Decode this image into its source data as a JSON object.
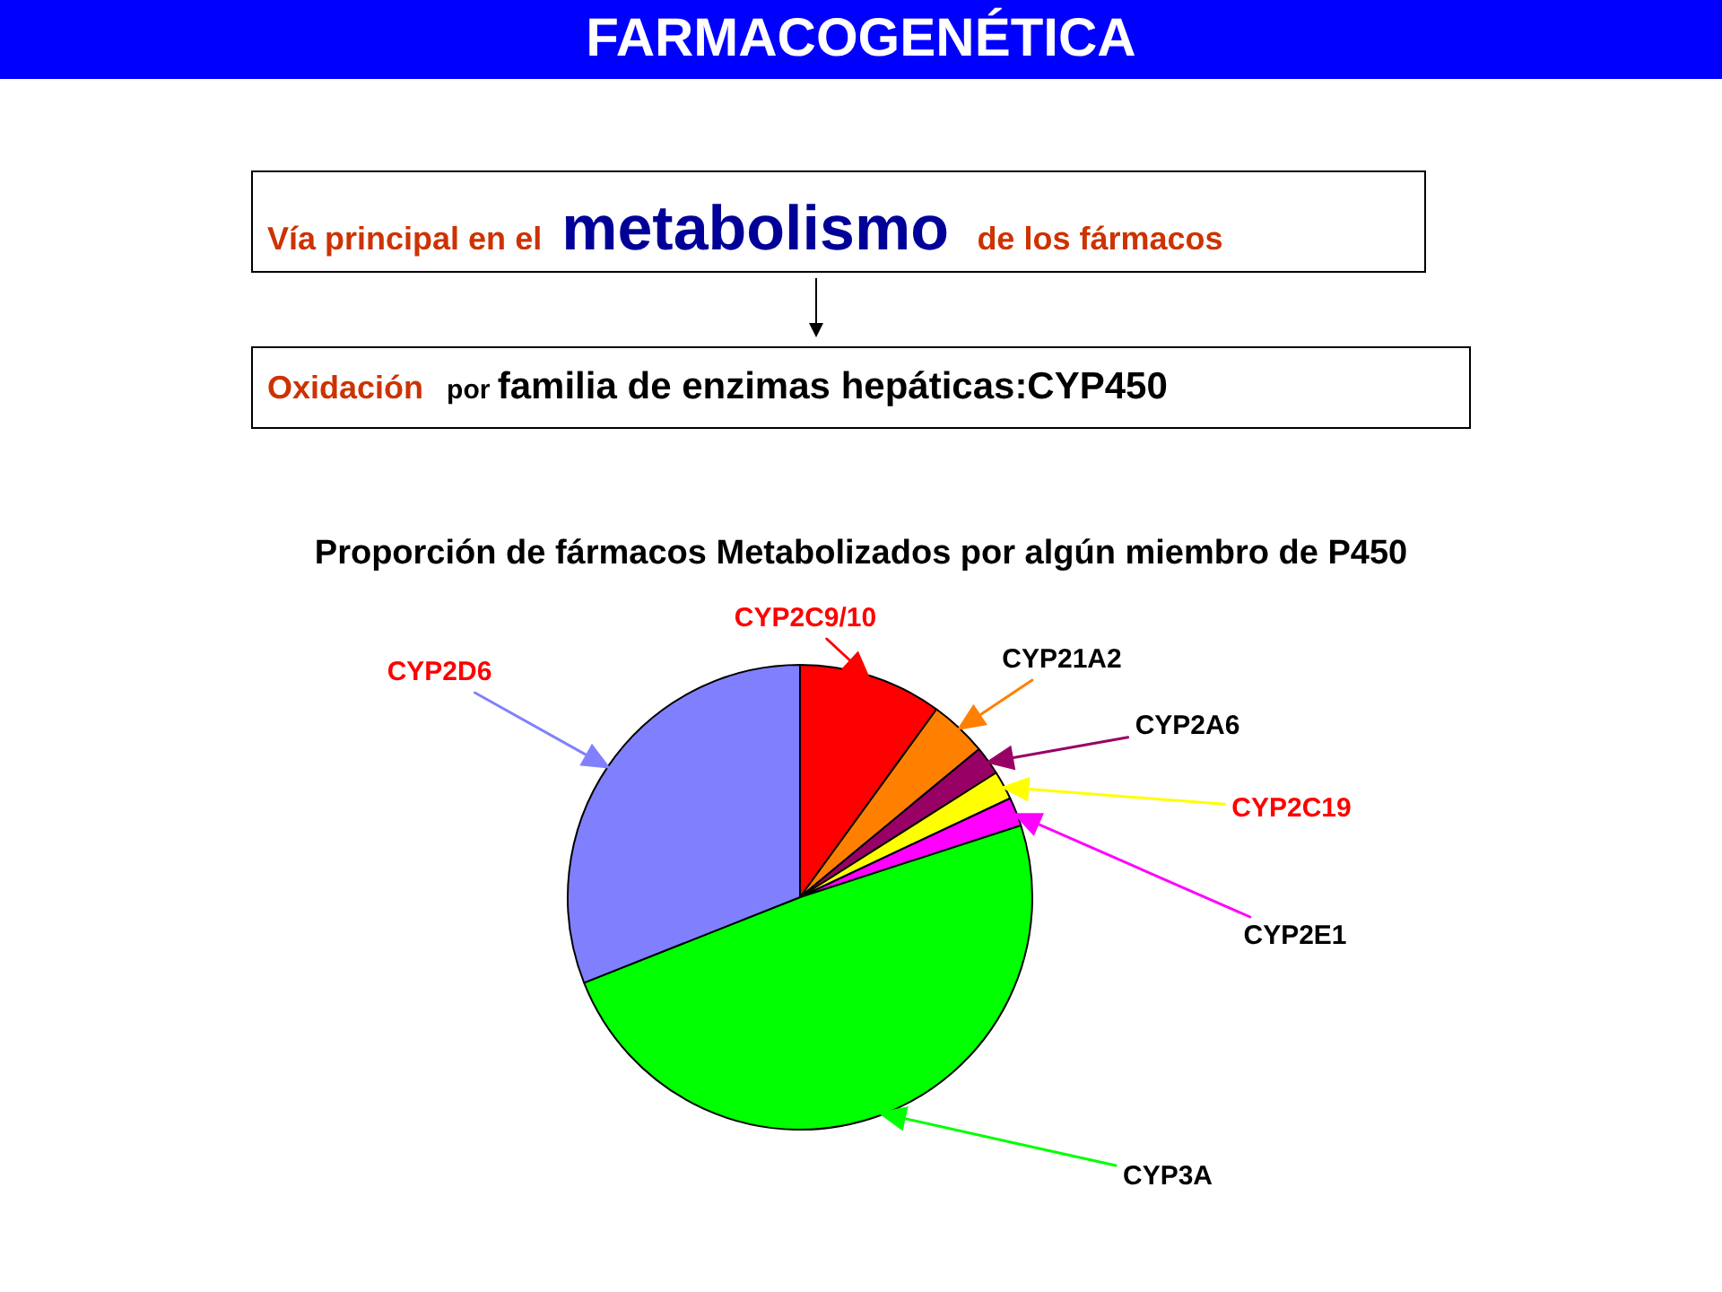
{
  "chart_data": {
    "type": "pie",
    "title": "FARMACOGENÉTICA",
    "subtitle": "Proporción de fármacos Metabolizados por algún miembro de P450",
    "annotations": [
      "Vía principal en el metabolismo de los fármacos",
      "Oxidación por familia de enzimas hepáticas:CYP450"
    ],
    "categories": [
      "CYP2C9/10",
      "CYP21A2",
      "CYP2A6",
      "CYP2C19",
      "CYP2E1",
      "CYP3A",
      "CYP2D6"
    ],
    "values": [
      10,
      4,
      2,
      2,
      2,
      49,
      31
    ],
    "colors": [
      "#ff0000",
      "#ff8000",
      "#990066",
      "#ffff00",
      "#ff00ff",
      "#00ff00",
      "#8080ff"
    ]
  }
}
